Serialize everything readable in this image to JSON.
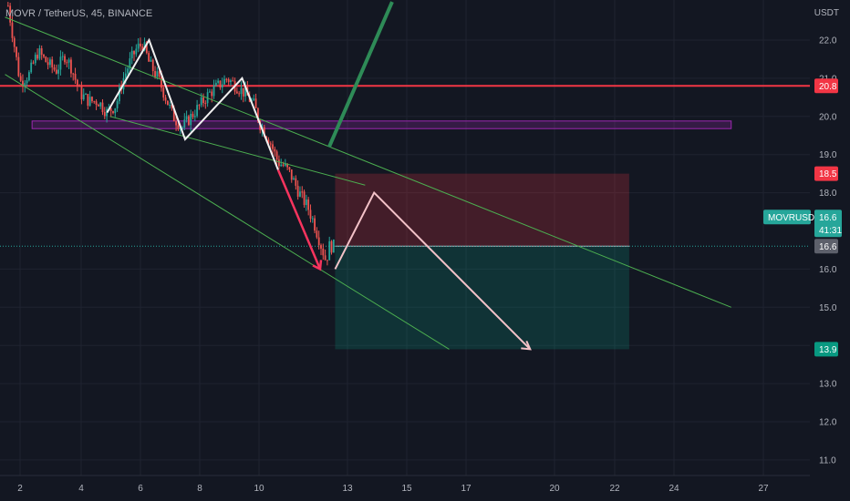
{
  "header": {
    "symbol_line": "MOVR / TetherUS, 45, BINANCE",
    "unit": "USDT"
  },
  "colors": {
    "background": "#131722",
    "up": "#26a69a",
    "down": "#ef5350",
    "resistance": "#f23645",
    "range": "#9c27b0",
    "stop": "#f23645",
    "target": "#089981",
    "current": "#26a69a",
    "trend": "#4caf50"
  },
  "chart_data": {
    "type": "candlestick",
    "symbol": "MOVRUSDT",
    "y_ticks": [
      "22.0",
      "21.0",
      "20.0",
      "19.0",
      "18.0",
      "16.0",
      "15.0",
      "14.0",
      "13.0",
      "12.0",
      "11.0"
    ],
    "x_ticks": [
      "2",
      "4",
      "6",
      "8",
      "10",
      "13",
      "15",
      "17",
      "20",
      "22",
      "24",
      "27"
    ],
    "ylim": [
      10.6,
      23.0
    ],
    "price_tags": {
      "resistance": "20.8",
      "stop": "18.5",
      "symbol_label": "MOVRUSDT",
      "current": "16.6",
      "countdown": "41:31",
      "last": "16.6",
      "target": "13.9"
    },
    "levels": {
      "resistance": 20.8,
      "range_top": 19.88,
      "range_bottom": 19.68,
      "current": 16.6,
      "stop": 18.5,
      "target": 13.9
    },
    "path": [
      [
        1.6,
        22.9
      ],
      [
        1.8,
        21.9
      ],
      [
        2.0,
        20.9
      ],
      [
        2.3,
        21.1
      ],
      [
        2.6,
        21.7
      ],
      [
        2.9,
        21.4
      ],
      [
        3.2,
        21.2
      ],
      [
        3.5,
        21.6
      ],
      [
        3.7,
        21.3
      ],
      [
        4.0,
        20.6
      ],
      [
        4.3,
        20.4
      ],
      [
        4.6,
        20.4
      ],
      [
        4.9,
        20.1
      ],
      [
        5.2,
        20.3
      ],
      [
        5.4,
        20.9
      ],
      [
        5.7,
        21.5
      ],
      [
        5.9,
        21.8
      ],
      [
        6.1,
        21.9
      ],
      [
        6.3,
        21.4
      ],
      [
        6.6,
        21.0
      ],
      [
        6.9,
        20.4
      ],
      [
        7.1,
        20.0
      ],
      [
        7.4,
        19.7
      ],
      [
        7.7,
        20.0
      ],
      [
        8.0,
        20.3
      ],
      [
        8.3,
        20.6
      ],
      [
        8.6,
        20.8
      ],
      [
        8.9,
        21.0
      ],
      [
        9.2,
        20.8
      ],
      [
        9.5,
        20.6
      ],
      [
        9.8,
        20.3
      ],
      [
        10.0,
        19.8
      ],
      [
        10.3,
        19.4
      ],
      [
        10.6,
        18.8
      ],
      [
        10.8,
        18.7
      ],
      [
        11.0,
        18.5
      ],
      [
        11.3,
        18.0
      ],
      [
        11.6,
        17.6
      ],
      [
        11.8,
        17.2
      ],
      [
        12.0,
        16.7
      ],
      [
        12.2,
        16.2
      ],
      [
        12.3,
        16.6
      ],
      [
        12.5,
        16.6
      ]
    ],
    "drawings": {
      "trendlines": [
        [
          [
            1.5,
            22.6
          ],
          [
            25.7,
            15.0
          ]
        ],
        [
          [
            1.5,
            21.1
          ],
          [
            16.3,
            13.9
          ]
        ],
        [
          [
            5.0,
            20.0
          ],
          [
            13.5,
            18.2
          ]
        ]
      ],
      "white_pattern": [
        [
          4.9,
          20.1
        ],
        [
          6.3,
          22.0
        ],
        [
          7.5,
          19.4
        ],
        [
          9.4,
          21.0
        ],
        [
          10.6,
          18.6
        ]
      ],
      "red_leg": [
        [
          10.6,
          18.6
        ],
        [
          12.0,
          16.0
        ]
      ],
      "projection": [
        [
          12.5,
          16.0
        ],
        [
          13.8,
          18.0
        ],
        [
          19.0,
          13.9
        ]
      ],
      "green_arrow": [
        [
          12.3,
          19.2
        ],
        [
          14.4,
          23.0
        ]
      ],
      "risk_box": {
        "x0": 12.5,
        "x1": 22.3
      }
    }
  }
}
